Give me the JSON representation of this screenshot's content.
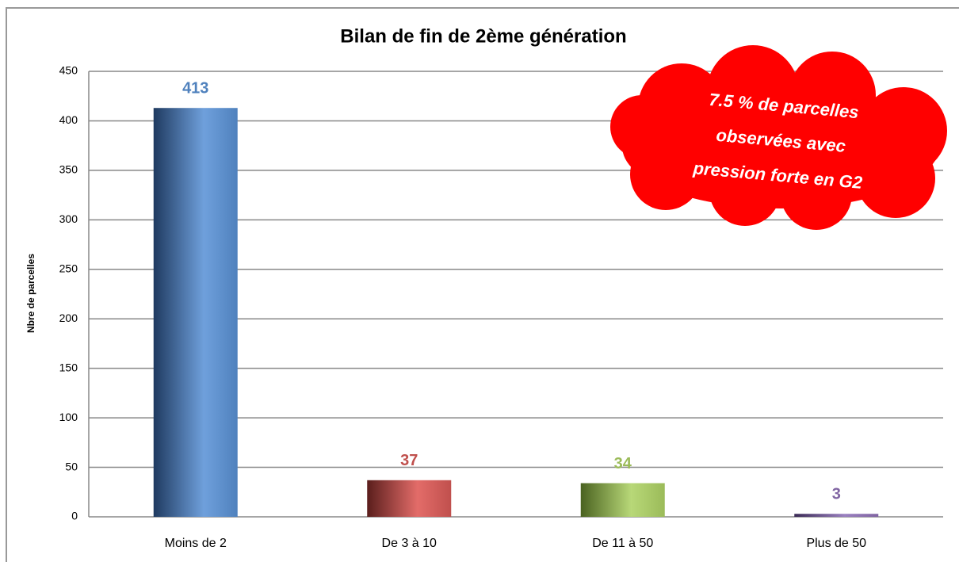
{
  "chart_data": {
    "type": "bar",
    "title": "Bilan de fin de 2ème génération",
    "y_label": "Nbre de parcelles",
    "annotation": [
      "7.5 % de parcelles",
      "observées avec",
      "pression forte en G2"
    ],
    "categories": [
      "Moins de 2",
      "De 3 à 10",
      "De 11 à 50",
      "Plus de 50"
    ],
    "values": [
      413,
      37,
      34,
      3
    ],
    "colors": [
      "#4f81bd",
      "#c0504d",
      "#9bbb59",
      "#8064a2"
    ],
    "ylim": [
      0,
      450
    ],
    "yticks": [
      0,
      50,
      100,
      150,
      200,
      250,
      300,
      350,
      400,
      450
    ],
    "grid": true
  }
}
